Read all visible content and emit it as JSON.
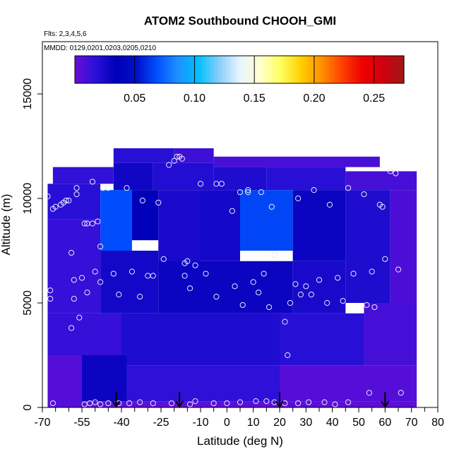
{
  "chart_data": {
    "type": "heatmap",
    "title": "ATOM2 Southbound CHOOH_GMI",
    "subtitle_flights": "Flts: 2,3,4,5,6",
    "subtitle_dates": "MMDD: 0129,0201,0203,0205,0210",
    "xlabel": "Latitude (deg N)",
    "ylabel": "Altitude (m)",
    "xlim": [
      -70,
      80
    ],
    "ylim": [
      0,
      17500
    ],
    "x_ticks": [
      -70,
      -55,
      -40,
      -25,
      -10,
      0,
      10,
      20,
      30,
      40,
      50,
      60,
      70,
      80
    ],
    "x_tick_labels": [
      "-70",
      "-55",
      "-40",
      "-25",
      "-10",
      "0",
      "10",
      "20",
      "30",
      "40",
      "50",
      "60",
      "70",
      "80"
    ],
    "x_minor_ticks": [
      -65,
      -60,
      -50,
      -45,
      -35,
      -30,
      -20,
      -15,
      -5,
      5,
      15,
      25,
      35,
      45,
      55,
      65,
      75
    ],
    "y_ticks": [
      0,
      5000,
      10000,
      15000
    ],
    "y_tick_labels": [
      "0",
      "5000",
      "10000",
      "15000"
    ],
    "colorbar": {
      "range": [
        0.0,
        0.275
      ],
      "ticks": [
        0.05,
        0.1,
        0.15,
        0.2,
        0.25
      ],
      "tick_labels": [
        "0.05",
        "0.10",
        "0.15",
        "0.20",
        "0.25"
      ],
      "colors": [
        "#6a0dd6",
        "#2a10d8",
        "#0000b8",
        "#0010c8",
        "#0050ff",
        "#1e90ff",
        "#00bfff",
        "#87cefa",
        "#e6f4ff",
        "#ffffd0",
        "#ffff60",
        "#ffd000",
        "#ff9000",
        "#ff4000",
        "#ee0000",
        "#d00010",
        "#a01818"
      ]
    },
    "cells": [
      {
        "lat": [
          -43,
          -20
        ],
        "alt": [
          11700,
          12400
        ],
        "v": 0.018
      },
      {
        "lat": [
          -20,
          -5
        ],
        "alt": [
          11700,
          12400
        ],
        "v": 0.012
      },
      {
        "lat": [
          -5,
          58
        ],
        "alt": [
          11500,
          12000
        ],
        "v": 0.009
      },
      {
        "lat": [
          -66,
          -43
        ],
        "alt": [
          10700,
          11500
        ],
        "v": 0.015
      },
      {
        "lat": [
          -43,
          -28
        ],
        "alt": [
          10400,
          11700
        ],
        "v": 0.028
      },
      {
        "lat": [
          -28,
          -5
        ],
        "alt": [
          10400,
          11700
        ],
        "v": 0.02
      },
      {
        "lat": [
          -5,
          15
        ],
        "alt": [
          10400,
          11500
        ],
        "v": 0.022
      },
      {
        "lat": [
          15,
          45
        ],
        "alt": [
          10400,
          11500
        ],
        "v": 0.018
      },
      {
        "lat": [
          45,
          72
        ],
        "alt": [
          10400,
          11300
        ],
        "v": 0.01
      },
      {
        "lat": [
          -68,
          -48
        ],
        "alt": [
          9000,
          10700
        ],
        "v": 0.018
      },
      {
        "lat": [
          -48,
          -36
        ],
        "alt": [
          7500,
          10400
        ],
        "v": 0.068
      },
      {
        "lat": [
          -36,
          -26
        ],
        "alt": [
          8000,
          10400
        ],
        "v": 0.035
      },
      {
        "lat": [
          -26,
          -10
        ],
        "alt": [
          6500,
          10400
        ],
        "v": 0.024
      },
      {
        "lat": [
          -10,
          5
        ],
        "alt": [
          7000,
          10400
        ],
        "v": 0.026
      },
      {
        "lat": [
          5,
          25
        ],
        "alt": [
          7500,
          10400
        ],
        "v": 0.066
      },
      {
        "lat": [
          25,
          45
        ],
        "alt": [
          7000,
          10400
        ],
        "v": 0.03
      },
      {
        "lat": [
          45,
          62
        ],
        "alt": [
          5000,
          10400
        ],
        "v": 0.022
      },
      {
        "lat": [
          62,
          72
        ],
        "alt": [
          5000,
          10400
        ],
        "v": 0.008
      },
      {
        "lat": [
          -68,
          -48
        ],
        "alt": [
          4500,
          9000
        ],
        "v": 0.014
      },
      {
        "lat": [
          -48,
          -26
        ],
        "alt": [
          4500,
          7500
        ],
        "v": 0.026
      },
      {
        "lat": [
          -26,
          25
        ],
        "alt": [
          4500,
          7000
        ],
        "v": 0.03
      },
      {
        "lat": [
          25,
          45
        ],
        "alt": [
          4500,
          7000
        ],
        "v": 0.024
      },
      {
        "lat": [
          -68,
          -40
        ],
        "alt": [
          2500,
          4500
        ],
        "v": 0.014
      },
      {
        "lat": [
          -40,
          20
        ],
        "alt": [
          2000,
          4500
        ],
        "v": 0.022
      },
      {
        "lat": [
          20,
          52
        ],
        "alt": [
          2000,
          4500
        ],
        "v": 0.018
      },
      {
        "lat": [
          52,
          72
        ],
        "alt": [
          2000,
          5000
        ],
        "v": 0.01
      },
      {
        "lat": [
          -68,
          -55
        ],
        "alt": [
          0,
          2500
        ],
        "v": 0.006
      },
      {
        "lat": [
          -55,
          -38
        ],
        "alt": [
          300,
          2500
        ],
        "v": 0.03
      },
      {
        "lat": [
          -38,
          20
        ],
        "alt": [
          300,
          2000
        ],
        "v": 0.016
      },
      {
        "lat": [
          20,
          72
        ],
        "alt": [
          300,
          2000
        ],
        "v": 0.006
      },
      {
        "lat": [
          -55,
          72
        ],
        "alt": [
          0,
          300
        ],
        "v": 0.004
      }
    ],
    "points": [
      [
        -68,
        10100
      ],
      [
        -67,
        5600
      ],
      [
        -67,
        5200
      ],
      [
        -66,
        9500
      ],
      [
        -65,
        9600
      ],
      [
        -63,
        9700
      ],
      [
        -62,
        9800
      ],
      [
        -61,
        9900
      ],
      [
        -60,
        9900
      ],
      [
        -58,
        6100
      ],
      [
        -58,
        5200
      ],
      [
        -59,
        7400
      ],
      [
        -59,
        3800
      ],
      [
        -57,
        10500
      ],
      [
        -57,
        10200
      ],
      [
        -56,
        4300
      ],
      [
        -55,
        6200
      ],
      [
        -54,
        8800
      ],
      [
        -53,
        8800
      ],
      [
        -51,
        8800
      ],
      [
        -49,
        8900
      ],
      [
        -53,
        5500
      ],
      [
        -51,
        10800
      ],
      [
        -50,
        6500
      ],
      [
        -48,
        6000
      ],
      [
        -48,
        7700
      ],
      [
        -47,
        10500
      ],
      [
        -45,
        10500
      ],
      [
        -43,
        6400
      ],
      [
        -41,
        5400
      ],
      [
        -38,
        10500
      ],
      [
        -36,
        6500
      ],
      [
        -33,
        5300
      ],
      [
        -32,
        9900
      ],
      [
        -30,
        6300
      ],
      [
        -28,
        6300
      ],
      [
        -26,
        9800
      ],
      [
        -24,
        7100
      ],
      [
        -22,
        11600
      ],
      [
        -20,
        11800
      ],
      [
        -19,
        12000
      ],
      [
        -18,
        12000
      ],
      [
        -17,
        11900
      ],
      [
        -16,
        6900
      ],
      [
        -16,
        6300
      ],
      [
        -15,
        7000
      ],
      [
        -14,
        5700
      ],
      [
        -12,
        6800
      ],
      [
        -10,
        10700
      ],
      [
        -8,
        6400
      ],
      [
        -4,
        5300
      ],
      [
        -4,
        10700
      ],
      [
        -2,
        10700
      ],
      [
        2,
        9400
      ],
      [
        3,
        5800
      ],
      [
        5,
        10300
      ],
      [
        6,
        4900
      ],
      [
        8,
        10400
      ],
      [
        8,
        10300
      ],
      [
        10,
        6000
      ],
      [
        12,
        5500
      ],
      [
        13,
        10300
      ],
      [
        14,
        6400
      ],
      [
        16,
        4800
      ],
      [
        17,
        9600
      ],
      [
        18,
        7300
      ],
      [
        22,
        4100
      ],
      [
        23,
        2500
      ],
      [
        24,
        5000
      ],
      [
        26,
        5900
      ],
      [
        27,
        10000
      ],
      [
        28,
        5400
      ],
      [
        30,
        5800
      ],
      [
        32,
        5400
      ],
      [
        33,
        10400
      ],
      [
        35,
        6100
      ],
      [
        38,
        5000
      ],
      [
        39,
        9700
      ],
      [
        42,
        6200
      ],
      [
        44,
        5100
      ],
      [
        46,
        10500
      ],
      [
        48,
        6400
      ],
      [
        52,
        10200
      ],
      [
        53,
        4900
      ],
      [
        55,
        6500
      ],
      [
        56,
        4800
      ],
      [
        58,
        9700
      ],
      [
        59,
        9600
      ],
      [
        60,
        7100
      ],
      [
        62,
        11300
      ],
      [
        64,
        11200
      ],
      [
        65,
        6600
      ],
      [
        66,
        700
      ],
      [
        -66,
        200
      ],
      [
        -54,
        150
      ],
      [
        -52,
        200
      ],
      [
        -50,
        250
      ],
      [
        -48,
        150
      ],
      [
        -45,
        200
      ],
      [
        -41,
        200
      ],
      [
        -37,
        200
      ],
      [
        -33,
        250
      ],
      [
        -28,
        200
      ],
      [
        -21,
        200
      ],
      [
        -14,
        150
      ],
      [
        -12,
        300
      ],
      [
        -5,
        200
      ],
      [
        0,
        200
      ],
      [
        5,
        250
      ],
      [
        11,
        300
      ],
      [
        15,
        300
      ],
      [
        18,
        250
      ],
      [
        22,
        200
      ],
      [
        27,
        200
      ],
      [
        31,
        250
      ],
      [
        37,
        250
      ],
      [
        41,
        150
      ],
      [
        46,
        250
      ],
      [
        54,
        700
      ]
    ],
    "arrows": [
      -42,
      -18,
      20,
      60
    ]
  }
}
